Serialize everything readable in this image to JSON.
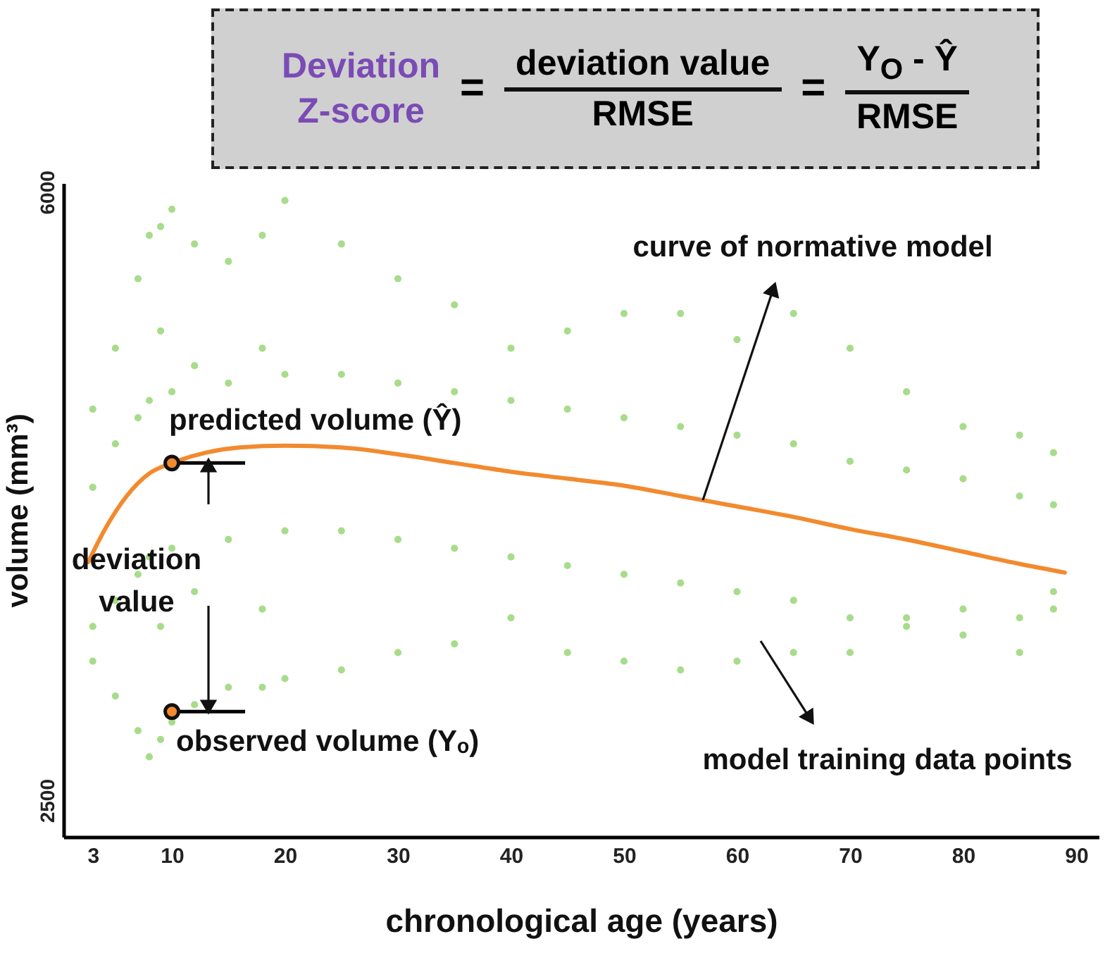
{
  "chart_data": {
    "type": "scatter",
    "xlabel": "chronological age (years)",
    "ylabel": "volume (mm³)",
    "xlim": [
      0.4,
      92
    ],
    "ylim": [
      2290,
      6050
    ],
    "xticks": [
      3,
      10,
      20,
      30,
      40,
      50,
      60,
      70,
      80,
      90
    ],
    "yticks": [
      2500,
      6000
    ],
    "grid": false,
    "x": [
      3,
      3,
      3,
      3,
      5,
      5,
      5,
      5,
      7,
      7,
      7,
      7,
      8,
      8,
      8,
      8,
      9,
      9,
      9,
      9,
      10,
      10,
      10,
      10,
      12,
      12,
      12,
      12,
      15,
      15,
      15,
      15,
      18,
      18,
      18,
      18,
      20,
      20,
      20,
      20,
      25,
      25,
      25,
      25,
      30,
      30,
      30,
      30,
      35,
      35,
      35,
      35,
      40,
      40,
      40,
      40,
      45,
      45,
      45,
      45,
      50,
      50,
      50,
      50,
      55,
      55,
      55,
      55,
      60,
      60,
      60,
      60,
      65,
      65,
      65,
      65,
      70,
      70,
      70,
      70,
      75,
      75,
      75,
      75,
      80,
      80,
      80,
      80,
      85,
      85,
      85,
      85,
      88,
      88,
      88,
      88
    ],
    "series": [
      {
        "color": "#a8dc8c",
        "values": [
          4750,
          3300,
          4300,
          3500,
          5100,
          3100,
          4550,
          3650,
          5500,
          2900,
          4700,
          3800,
          5750,
          2750,
          4800,
          3900,
          5800,
          2850,
          5200,
          3500,
          5900,
          2950,
          4850,
          3950,
          5700,
          3050,
          5000,
          3700,
          5600,
          3150,
          4900,
          4000,
          5750,
          3150,
          5100,
          3600,
          5950,
          3200,
          4950,
          4050,
          5700,
          3250,
          4950,
          4050,
          5500,
          3350,
          4900,
          4000,
          5350,
          3400,
          4850,
          3950,
          5100,
          3550,
          4800,
          3900,
          5200,
          3350,
          4750,
          3850,
          5300,
          3300,
          4700,
          3800,
          5300,
          3250,
          4650,
          3750,
          5150,
          3300,
          4600,
          3700,
          5300,
          3350,
          4550,
          3650,
          5100,
          3350,
          4450,
          3550,
          4850,
          3550,
          4400,
          3500,
          4650,
          3600,
          4350,
          3450,
          4600,
          3550,
          4250,
          3350,
          4500,
          3600,
          4200,
          3700
        ]
      },
      {
        "type": "line",
        "color": "#f28a2e",
        "x": [
          2.6,
          4,
          6,
          8,
          10,
          13,
          16,
          20,
          25,
          30,
          35,
          40,
          45,
          50,
          55,
          60,
          65,
          70,
          75,
          80,
          85,
          89
        ],
        "values": [
          3870,
          4050,
          4250,
          4380,
          4440,
          4500,
          4530,
          4540,
          4530,
          4490,
          4440,
          4390,
          4350,
          4310,
          4250,
          4190,
          4130,
          4060,
          4000,
          3930,
          3860,
          3810
        ]
      },
      {
        "color": "#f28a2e",
        "x": [
          10,
          10
        ],
        "values": [
          4440,
          3010
        ]
      }
    ],
    "annotations": [
      "Deviation",
      "Z-score",
      "=",
      "deviation value",
      "RMSE",
      "=",
      "Y$_{O}$ - Ŷ",
      "RMSE",
      "curve of normative model",
      "predicted volume (Ŷ)",
      "deviation value",
      "observed volume (Yₒ)",
      "model training data points"
    ]
  }
}
